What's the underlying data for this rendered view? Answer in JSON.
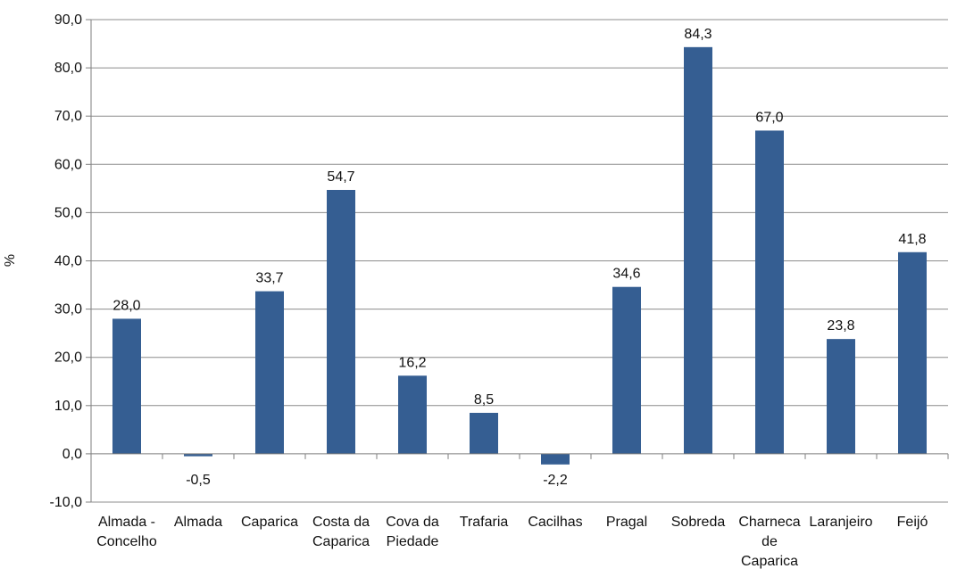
{
  "chart_data": {
    "type": "bar",
    "title": "",
    "xlabel": "",
    "ylabel": "%",
    "ylim": [
      -10,
      90
    ],
    "yticks": [
      -10,
      0,
      10,
      20,
      30,
      40,
      50,
      60,
      70,
      80,
      90
    ],
    "ytick_labels": [
      "-10,0",
      "0,0",
      "10,0",
      "20,0",
      "30,0",
      "40,0",
      "50,0",
      "60,0",
      "70,0",
      "80,0",
      "90,0"
    ],
    "grid": true,
    "legend": "none",
    "bar_color": "#355E92",
    "categories": [
      "Almada - Concelho",
      "Almada",
      "Caparica",
      "Costa da Caparica",
      "Cova da Piedade",
      "Trafaria",
      "Cacilhas",
      "Pragal",
      "Sobreda",
      "Charneca de Caparica",
      "Laranjeiro",
      "Feijó"
    ],
    "category_lines": [
      [
        "Almada -",
        "Concelho"
      ],
      [
        "Almada"
      ],
      [
        "Caparica"
      ],
      [
        "Costa da",
        "Caparica"
      ],
      [
        "Cova da",
        "Piedade"
      ],
      [
        "Trafaria"
      ],
      [
        "Cacilhas"
      ],
      [
        "Pragal"
      ],
      [
        "Sobreda"
      ],
      [
        "Charneca",
        "de",
        "Caparica"
      ],
      [
        "Laranjeiro"
      ],
      [
        "Feijó"
      ]
    ],
    "values": [
      28.0,
      -0.5,
      33.7,
      54.7,
      16.2,
      8.5,
      -2.2,
      34.6,
      84.3,
      67.0,
      23.8,
      41.8
    ],
    "value_labels": [
      "28,0",
      "-0,5",
      "33,7",
      "54,7",
      "16,2",
      "8,5",
      "-2,2",
      "34,6",
      "84,3",
      "67,0",
      "23,8",
      "41,8"
    ]
  }
}
